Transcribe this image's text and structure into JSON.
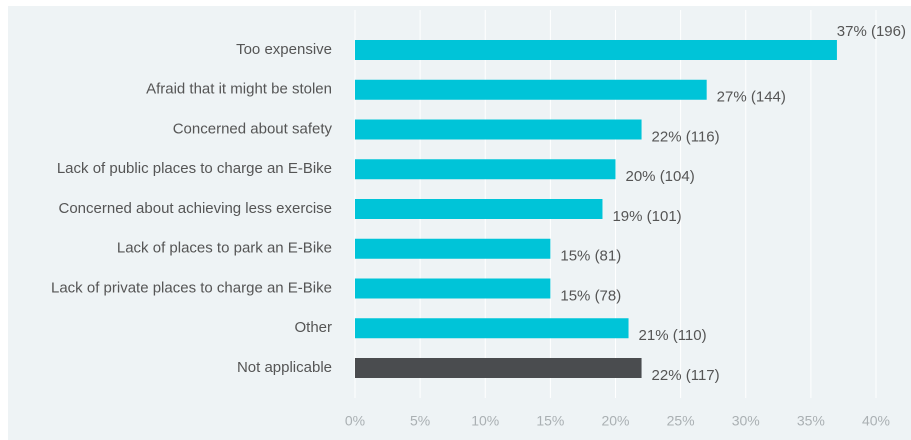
{
  "chart_data": {
    "type": "bar",
    "orientation": "horizontal",
    "categories": [
      "Too expensive",
      "Afraid that it might be stolen",
      "Concerned about safety",
      "Lack of public places to charge an E-Bike",
      "Concerned about achieving less exercise",
      "Lack of places to park an E-Bike",
      "Lack of private places to charge an E-Bike",
      "Other",
      "Not applicable"
    ],
    "values": [
      37,
      27,
      22,
      20,
      19,
      15,
      15,
      21,
      22
    ],
    "value_labels": [
      "37% (196)",
      "27% (144)",
      "22% (116)",
      "20% (104)",
      "19% (101)",
      "15% (81)",
      "15% (78)",
      "21% (110)",
      "22% (117)"
    ],
    "colors": [
      "#00c4d8",
      "#00c4d8",
      "#00c4d8",
      "#00c4d8",
      "#00c4d8",
      "#00c4d8",
      "#00c4d8",
      "#00c4d8",
      "#4a4c4f"
    ],
    "xlim": [
      0,
      40
    ],
    "xticks": [
      {
        "value": 0,
        "label": "0%"
      },
      {
        "value": 5,
        "label": "5%"
      },
      {
        "value": 10,
        "label": "10%"
      },
      {
        "value": 15,
        "label": "15%"
      },
      {
        "value": 20,
        "label": "20%"
      },
      {
        "value": 25,
        "label": "25%"
      },
      {
        "value": 30,
        "label": "30%"
      },
      {
        "value": 35,
        "label": "35%"
      },
      {
        "value": 40,
        "label": "40%"
      }
    ],
    "grid": true
  }
}
